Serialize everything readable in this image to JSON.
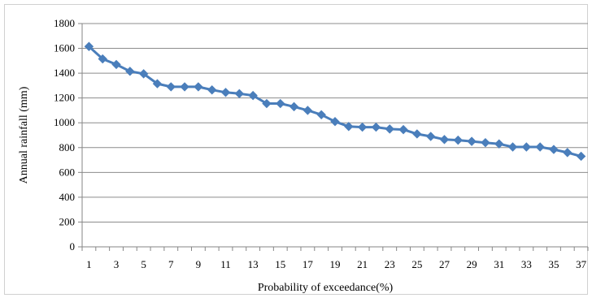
{
  "chart_data": {
    "type": "line",
    "xlabel": "Probability  of exceedance(%)",
    "ylabel": "Annual rainfall  (mm)",
    "ylim": [
      0,
      1800
    ],
    "yticks": [
      0,
      200,
      400,
      600,
      800,
      1000,
      1200,
      1400,
      1600,
      1800
    ],
    "xticks_labeled": [
      1,
      3,
      5,
      7,
      9,
      11,
      13,
      15,
      17,
      19,
      21,
      23,
      25,
      27,
      29,
      31,
      33,
      35,
      37
    ],
    "grid": "horizontal",
    "legend": "none",
    "series": [
      {
        "color": "#4a7ebb",
        "marker": "diamond",
        "x": [
          1,
          2,
          3,
          4,
          5,
          6,
          7,
          8,
          9,
          10,
          11,
          12,
          13,
          14,
          15,
          16,
          17,
          18,
          19,
          20,
          21,
          22,
          23,
          24,
          25,
          26,
          27,
          28,
          29,
          30,
          31,
          32,
          33,
          34,
          35,
          36,
          37
        ],
        "values": [
          1615,
          1515,
          1470,
          1415,
          1395,
          1315,
          1290,
          1290,
          1290,
          1265,
          1245,
          1235,
          1220,
          1155,
          1155,
          1130,
          1100,
          1065,
          1010,
          970,
          965,
          965,
          950,
          945,
          910,
          890,
          865,
          860,
          850,
          840,
          830,
          805,
          805,
          805,
          785,
          760,
          730
        ]
      }
    ]
  }
}
